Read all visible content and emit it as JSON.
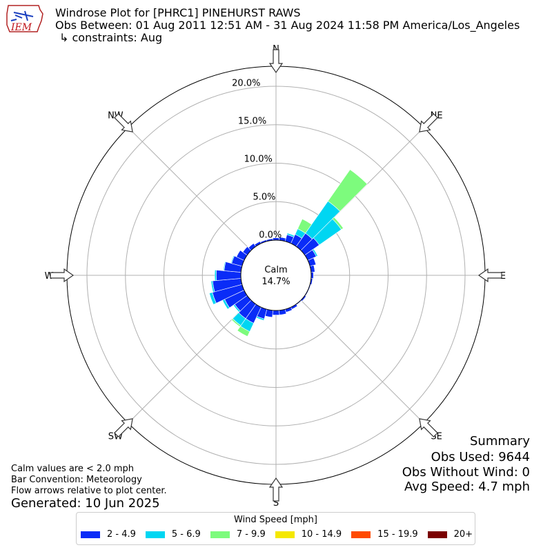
{
  "header": {
    "title": "Windrose Plot for [PHRC1] PINEHURST RAWS",
    "obs_between": "Obs Between: 01 Aug 2011 12:51 AM - 31 Aug 2024 11:58 PM America/Los_Angeles",
    "constraints": "↳ constraints: Aug",
    "logo_text": "IEM"
  },
  "notes": {
    "calm_note": "Calm values are < 2.0 mph",
    "bar_convention": "Bar Convention: Meteorology",
    "flow_note": "Flow arrows relative to plot center.",
    "generated": "Generated: 10 Jun 2025"
  },
  "summary": {
    "heading": "Summary",
    "obs_used": "Obs Used: 9644",
    "obs_without_wind": "Obs Without Wind: 0",
    "avg_speed": "Avg Speed: 4.7 mph"
  },
  "legend": {
    "title": "Wind Speed [mph]",
    "items": [
      {
        "label": "2 - 4.9",
        "color": "#0a2cf7"
      },
      {
        "label": "5 - 6.9",
        "color": "#00d6f2"
      },
      {
        "label": "7 - 9.9",
        "color": "#7dfb7d"
      },
      {
        "label": "10 - 14.9",
        "color": "#f5e800"
      },
      {
        "label": "15 - 19.9",
        "color": "#ff4a00"
      },
      {
        "label": "20+",
        "color": "#7a0000"
      }
    ]
  },
  "chart_data": {
    "type": "windrose",
    "calm_label": "Calm",
    "calm_value": "14.7%",
    "calm_percent": 14.7,
    "radial_ticks": [
      "0.0%",
      "5.0%",
      "10.0%",
      "15.0%",
      "20.0%"
    ],
    "radial_tick_values": [
      0,
      5,
      10,
      15,
      20
    ],
    "radial_max": 22.6,
    "directions": [
      "N",
      "NE",
      "E",
      "SE",
      "S",
      "SW",
      "W",
      "NW"
    ],
    "sector_width_deg": 10,
    "bins": [
      "2 - 4.9",
      "5 - 6.9",
      "7 - 9.9",
      "10 - 14.9",
      "15 - 19.9",
      "20+"
    ],
    "sectors": [
      {
        "dir_deg": 0,
        "values": [
          0.3,
          0,
          0,
          0,
          0,
          0
        ]
      },
      {
        "dir_deg": 10,
        "values": [
          0.4,
          0,
          0,
          0,
          0,
          0
        ]
      },
      {
        "dir_deg": 20,
        "values": [
          0.9,
          0.2,
          0,
          0,
          0,
          0
        ]
      },
      {
        "dir_deg": 30,
        "values": [
          1.3,
          0.8,
          1.4,
          0,
          0,
          0
        ]
      },
      {
        "dir_deg": 40,
        "values": [
          2.1,
          5.1,
          5.0,
          0,
          0,
          0
        ]
      },
      {
        "dir_deg": 50,
        "values": [
          2.3,
          3.5,
          0.3,
          0,
          0,
          0
        ]
      },
      {
        "dir_deg": 60,
        "values": [
          1.2,
          0.2,
          0,
          0,
          0,
          0
        ]
      },
      {
        "dir_deg": 70,
        "values": [
          0.8,
          0,
          0,
          0,
          0,
          0
        ]
      },
      {
        "dir_deg": 80,
        "values": [
          0.5,
          0,
          0,
          0,
          0,
          0
        ]
      },
      {
        "dir_deg": 90,
        "values": [
          0.3,
          0,
          0,
          0,
          0,
          0
        ]
      },
      {
        "dir_deg": 100,
        "values": [
          0.2,
          0,
          0,
          0,
          0,
          0
        ]
      },
      {
        "dir_deg": 110,
        "values": [
          0.1,
          0,
          0,
          0,
          0,
          0
        ]
      },
      {
        "dir_deg": 120,
        "values": [
          0.1,
          0,
          0,
          0,
          0,
          0
        ]
      },
      {
        "dir_deg": 130,
        "values": [
          0.2,
          0,
          0,
          0,
          0,
          0
        ]
      },
      {
        "dir_deg": 140,
        "values": [
          0.1,
          0,
          0,
          0,
          0,
          0
        ]
      },
      {
        "dir_deg": 150,
        "values": [
          0.3,
          0,
          0,
          0,
          0,
          0
        ]
      },
      {
        "dir_deg": 160,
        "values": [
          0.4,
          0,
          0,
          0,
          0,
          0
        ]
      },
      {
        "dir_deg": 170,
        "values": [
          0.6,
          0,
          0,
          0,
          0,
          0
        ]
      },
      {
        "dir_deg": 180,
        "values": [
          0.6,
          0,
          0,
          0,
          0,
          0
        ]
      },
      {
        "dir_deg": 190,
        "values": [
          0.9,
          0,
          0,
          0,
          0,
          0
        ]
      },
      {
        "dir_deg": 200,
        "values": [
          1.3,
          0.2,
          0,
          0,
          0,
          0
        ]
      },
      {
        "dir_deg": 210,
        "values": [
          2.3,
          1.2,
          0.7,
          0,
          0,
          0
        ]
      },
      {
        "dir_deg": 220,
        "values": [
          2.3,
          1.1,
          0.2,
          0,
          0,
          0
        ]
      },
      {
        "dir_deg": 230,
        "values": [
          2.0,
          0.2,
          0,
          0,
          0,
          0
        ]
      },
      {
        "dir_deg": 240,
        "values": [
          2.8,
          0.3,
          0,
          0,
          0,
          0
        ]
      },
      {
        "dir_deg": 250,
        "values": [
          4.0,
          0.4,
          0,
          0,
          0,
          0
        ]
      },
      {
        "dir_deg": 260,
        "values": [
          3.7,
          0.2,
          0,
          0,
          0,
          0
        ]
      },
      {
        "dir_deg": 270,
        "values": [
          3.2,
          0.2,
          0,
          0,
          0,
          0
        ]
      },
      {
        "dir_deg": 280,
        "values": [
          2.2,
          0.1,
          0,
          0,
          0,
          0
        ]
      },
      {
        "dir_deg": 290,
        "values": [
          1.4,
          0.1,
          0,
          0,
          0,
          0
        ]
      },
      {
        "dir_deg": 300,
        "values": [
          1.1,
          0,
          0,
          0,
          0,
          0
        ]
      },
      {
        "dir_deg": 310,
        "values": [
          0.7,
          0,
          0,
          0,
          0,
          0
        ]
      },
      {
        "dir_deg": 320,
        "values": [
          0.5,
          0,
          0,
          0,
          0,
          0
        ]
      },
      {
        "dir_deg": 330,
        "values": [
          0.3,
          0,
          0,
          0,
          0,
          0
        ]
      },
      {
        "dir_deg": 340,
        "values": [
          0.2,
          0,
          0,
          0,
          0,
          0
        ]
      },
      {
        "dir_deg": 350,
        "values": [
          0.2,
          0,
          0,
          0,
          0,
          0
        ]
      }
    ]
  }
}
